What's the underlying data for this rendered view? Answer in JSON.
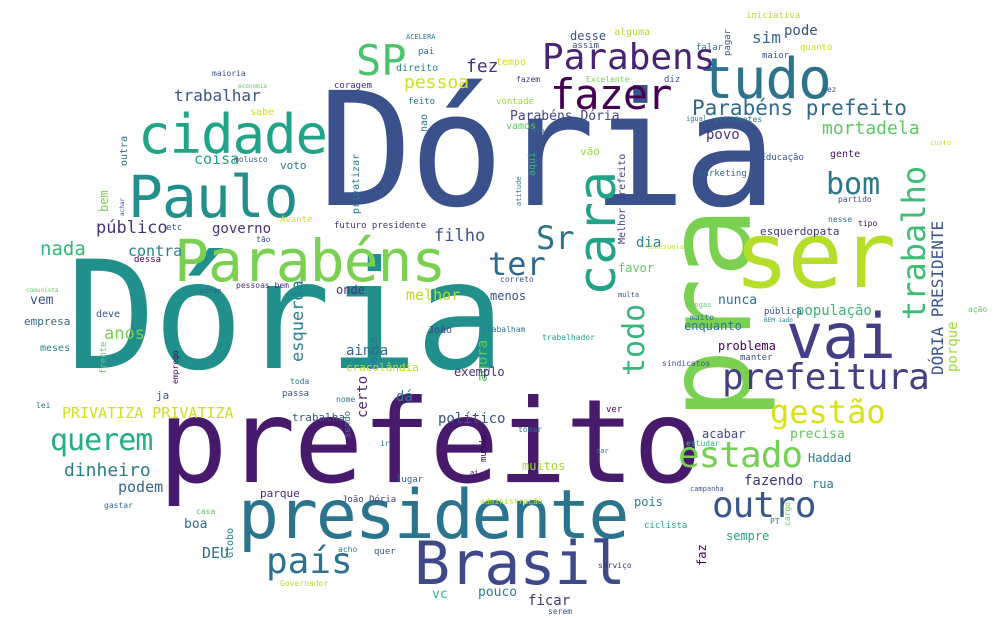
{
  "words": [
    {
      "text": "Dória",
      "color": "#3b518b"
    },
    {
      "text": "Dória",
      "color": "#21908d"
    },
    {
      "text": "prefeito",
      "color": "#481a6c"
    },
    {
      "text": "presidente",
      "color": "#2b748e"
    },
    {
      "text": "pra",
      "color": "#7ad151"
    },
    {
      "text": "ser",
      "color": "#b5de2b"
    },
    {
      "text": "Brasil",
      "color": "#3e4989"
    },
    {
      "text": "Parabéns",
      "color": "#7ad151"
    },
    {
      "text": "cidade",
      "color": "#20a386"
    },
    {
      "text": "Paulo",
      "color": "#21908d"
    },
    {
      "text": "tudo",
      "color": "#2c738e"
    },
    {
      "text": "vai",
      "color": "#433e85"
    },
    {
      "text": "prefeitura",
      "color": "#433e85"
    },
    {
      "text": "fazer",
      "color": "#440154"
    },
    {
      "text": "Parabens",
      "color": "#482374"
    },
    {
      "text": "cara",
      "color": "#20a386"
    },
    {
      "text": "SP",
      "color": "#4ac16d"
    },
    {
      "text": "estado",
      "color": "#75d054"
    },
    {
      "text": "outro",
      "color": "#38588c"
    },
    {
      "text": "país",
      "color": "#2c728e"
    },
    {
      "text": "querem",
      "color": "#27ad81"
    },
    {
      "text": "gestão",
      "color": "#d8e219"
    },
    {
      "text": "trabalho",
      "color": "#3fbc73"
    },
    {
      "text": "bom",
      "color": "#2a788e"
    },
    {
      "text": "ter",
      "color": "#31688e"
    },
    {
      "text": "Sr",
      "color": "#2c728e"
    },
    {
      "text": "todo",
      "color": "#35b779"
    },
    {
      "text": "Parabéns prefeito",
      "color": "#31688e"
    },
    {
      "text": "mortadela",
      "color": "#5ec962"
    },
    {
      "text": "DÓRIA PRESIDENTE",
      "color": "#3b528b"
    },
    {
      "text": "porque",
      "color": "#9fda3a"
    },
    {
      "text": "pessoa",
      "color": "#d0e11c"
    },
    {
      "text": "fez",
      "color": "#46337e"
    },
    {
      "text": "trabalhar",
      "color": "#3b528b"
    },
    {
      "text": "coisa",
      "color": "#20a486"
    },
    {
      "text": "público",
      "color": "#46337e"
    },
    {
      "text": "nada",
      "color": "#35b779"
    },
    {
      "text": "governo",
      "color": "#46327e"
    },
    {
      "text": "filho",
      "color": "#3b528b"
    },
    {
      "text": "contra",
      "color": "#26828e"
    },
    {
      "text": "melhor",
      "color": "#b5de2b"
    },
    {
      "text": "esquerda",
      "color": "#26828e"
    },
    {
      "text": "anos",
      "color": "#7ad151"
    },
    {
      "text": "PRIVATIZA PRIVATIZA",
      "color": "#d0e11c"
    },
    {
      "text": "dinheiro",
      "color": "#287d8e"
    },
    {
      "text": "podem",
      "color": "#31688e"
    },
    {
      "text": "DEU",
      "color": "#2d708e"
    },
    {
      "text": "Parabéns Dória",
      "color": "#414487"
    },
    {
      "text": "povo",
      "color": "#46327e"
    },
    {
      "text": "sim",
      "color": "#31688e"
    },
    {
      "text": "pode",
      "color": "#3b528b"
    },
    {
      "text": "desse",
      "color": "#3b528b"
    },
    {
      "text": "menos",
      "color": "#3b528b"
    },
    {
      "text": "favor",
      "color": "#5ec962"
    },
    {
      "text": "dia",
      "color": "#26828e"
    },
    {
      "text": "ainda",
      "color": "#31688e"
    },
    {
      "text": "agora",
      "color": "#5ec962"
    },
    {
      "text": "político",
      "color": "#3b528b"
    },
    {
      "text": "certo",
      "color": "#482878"
    },
    {
      "text": "dá",
      "color": "#2a788e"
    },
    {
      "text": "exemplo",
      "color": "#46327e"
    },
    {
      "text": "população",
      "color": "#35b779"
    },
    {
      "text": "nunca",
      "color": "#2c728e"
    },
    {
      "text": "enquanto",
      "color": "#2a788e"
    },
    {
      "text": "problema",
      "color": "#440154"
    },
    {
      "text": "precisa",
      "color": "#5ec962"
    },
    {
      "text": "acabar",
      "color": "#3e4a89"
    },
    {
      "text": "fazendo",
      "color": "#46337e"
    },
    {
      "text": "Haddad",
      "color": "#2a788e"
    },
    {
      "text": "rua",
      "color": "#2a788e"
    },
    {
      "text": "boa",
      "color": "#31688e"
    },
    {
      "text": "pouco",
      "color": "#26828e"
    },
    {
      "text": "ficar",
      "color": "#46337e"
    },
    {
      "text": "vc",
      "color": "#35b779"
    },
    {
      "text": "muitos",
      "color": "#9fda3a"
    },
    {
      "text": "pois",
      "color": "#287c8e"
    },
    {
      "text": "faz",
      "color": "#440154"
    },
    {
      "text": "sempre",
      "color": "#20a486"
    },
    {
      "text": "vem",
      "color": "#3b528b"
    },
    {
      "text": "empresa",
      "color": "#31688e"
    },
    {
      "text": "Força",
      "color": "#2c728e"
    },
    {
      "text": "cracolândia",
      "color": "#b5de2b"
    },
    {
      "text": "trabalha",
      "color": "#3b528b"
    },
    {
      "text": "Globo",
      "color": "#26828e"
    },
    {
      "text": "parque",
      "color": "#482878"
    },
    {
      "text": "onde",
      "color": "#46327e"
    },
    {
      "text": "alguma",
      "color": "#b5de2b"
    },
    {
      "text": "tempo",
      "color": "#d0e11c"
    },
    {
      "text": "direito",
      "color": "#26828e"
    },
    {
      "text": "coragem",
      "color": "#482878"
    },
    {
      "text": "vontade",
      "color": "#9fda3a"
    },
    {
      "text": "Melhor prefeito",
      "color": "#414487"
    },
    {
      "text": "vamos",
      "color": "#5ec962"
    },
    {
      "text": "vão",
      "color": "#9fda3a"
    },
    {
      "text": "aqui",
      "color": "#35b779"
    },
    {
      "text": "esquerdopata",
      "color": "#46327e"
    },
    {
      "text": "gente",
      "color": "#481467"
    },
    {
      "text": "Saúde Educação",
      "color": "#3b528b"
    },
    {
      "text": "marketing",
      "color": "#31688e"
    },
    {
      "text": "futuro presidente",
      "color": "#46327e"
    },
    {
      "text": "privatizar",
      "color": "#2a788e"
    },
    {
      "text": "bem",
      "color": "#7ad151"
    },
    {
      "text": "voto",
      "color": "#2a788e"
    },
    {
      "text": "outra",
      "color": "#2c728e"
    },
    {
      "text": "sabe",
      "color": "#d0e11c"
    },
    {
      "text": "feito",
      "color": "#2c728e"
    },
    {
      "text": "nao",
      "color": "#2a788e"
    },
    {
      "text": "maior",
      "color": "#3b528b"
    },
    {
      "text": "falar",
      "color": "#2c728e"
    },
    {
      "text": "quanto",
      "color": "#d0e11c"
    },
    {
      "text": "pagar",
      "color": "#3b528b"
    },
    {
      "text": "iniciativa",
      "color": "#b5de2b"
    },
    {
      "text": "assim",
      "color": "#3e4a89"
    },
    {
      "text": "fazem",
      "color": "#46327e"
    },
    {
      "text": "Excelente",
      "color": "#7ad151"
    },
    {
      "text": "diz",
      "color": "#3b528b"
    },
    {
      "text": "estudantes",
      "color": "#2a788e"
    },
    {
      "text": "igual",
      "color": "#2a788e"
    },
    {
      "text": "muito",
      "color": "#2c728e"
    },
    {
      "text": "sindicatos",
      "color": "#3b528b"
    },
    {
      "text": "manter",
      "color": "#3b528b"
    },
    {
      "text": "nesse",
      "color": "#2c728e"
    },
    {
      "text": "tipo",
      "color": "#440154"
    },
    {
      "text": "partido",
      "color": "#3b528b"
    },
    {
      "text": "correto",
      "color": "#3b528b"
    },
    {
      "text": "João",
      "color": "#414487"
    },
    {
      "text": "João Dória",
      "color": "#414487"
    },
    {
      "text": "trabalham",
      "color": "#2a788e"
    },
    {
      "text": "trabalhador",
      "color": "#20a486"
    },
    {
      "text": "pessoas bem",
      "color": "#46327e"
    },
    {
      "text": "mundo",
      "color": "#440154"
    },
    {
      "text": "tomar",
      "color": "#2c728e"
    },
    {
      "text": "estudar",
      "color": "#35b779"
    },
    {
      "text": "campanha",
      "color": "#3b528b"
    },
    {
      "text": "administração",
      "color": "#b5de2b"
    },
    {
      "text": "ciclista",
      "color": "#20a486"
    },
    {
      "text": "serviço",
      "color": "#46327e"
    },
    {
      "text": "Governador",
      "color": "#b5de2b"
    },
    {
      "text": "serem",
      "color": "#3b528b"
    },
    {
      "text": "quer",
      "color": "#3b528b"
    },
    {
      "text": "acho",
      "color": "#2a788e"
    },
    {
      "text": "lugar",
      "color": "#3b528b"
    },
    {
      "text": "casa",
      "color": "#5ec962"
    },
    {
      "text": "gastar",
      "color": "#2c728e"
    },
    {
      "text": "lei",
      "color": "#2a788e"
    },
    {
      "text": "meses",
      "color": "#26828e"
    },
    {
      "text": "frente",
      "color": "#5ec962"
    },
    {
      "text": "emprego",
      "color": "#440154"
    },
    {
      "text": "deve",
      "color": "#3b528b"
    },
    {
      "text": "ja",
      "color": "#3b528b"
    },
    {
      "text": "passa",
      "color": "#3b528b"
    },
    {
      "text": "toda",
      "color": "#2a788e"
    },
    {
      "text": "nome",
      "color": "#2a788e"
    },
    {
      "text": "sendo",
      "color": "#2c728e"
    },
    {
      "text": "etc",
      "color": "#3b528b"
    },
    {
      "text": "dessa",
      "color": "#440154"
    },
    {
      "text": "tão",
      "color": "#3b528b"
    },
    {
      "text": "Avante",
      "color": "#d0e11c"
    },
    {
      "text": "molusco",
      "color": "#3b528b"
    },
    {
      "text": "maioria",
      "color": "#3b528b"
    },
    {
      "text": "economia",
      "color": "#5ec962"
    },
    {
      "text": "ACELERA",
      "color": "#2a788e"
    },
    {
      "text": "pai",
      "color": "#2c728e"
    },
    {
      "text": "vez",
      "color": "#3b528b"
    },
    {
      "text": "Venezuela",
      "color": "#d0e11c"
    },
    {
      "text": "drogas",
      "color": "#5ec962"
    },
    {
      "text": "multa",
      "color": "#3b528b"
    },
    {
      "text": "pública",
      "color": "#3b528b"
    },
    {
      "text": "BEM iado",
      "color": "#2a788e"
    },
    {
      "text": "ação",
      "color": "#5ec962"
    },
    {
      "text": "cargo",
      "color": "#5ec962"
    },
    {
      "text": "PT",
      "color": "#2a788e"
    },
    {
      "text": "ver",
      "color": "#440154"
    },
    {
      "text": "dar",
      "color": "#2a788e"
    },
    {
      "text": "Rio",
      "color": "#2a788e"
    },
    {
      "text": "atitude",
      "color": "#2a788e"
    },
    {
      "text": "achar",
      "color": "#3b528b"
    },
    {
      "text": "piram",
      "color": "#3b528b"
    },
    {
      "text": "comunista",
      "color": "#5ec962"
    },
    {
      "text": "custo",
      "color": "#d0e11c"
    },
    {
      "text": "ir",
      "color": "#2a788e"
    },
    {
      "text": "ai",
      "color": "#440154"
    }
  ]
}
